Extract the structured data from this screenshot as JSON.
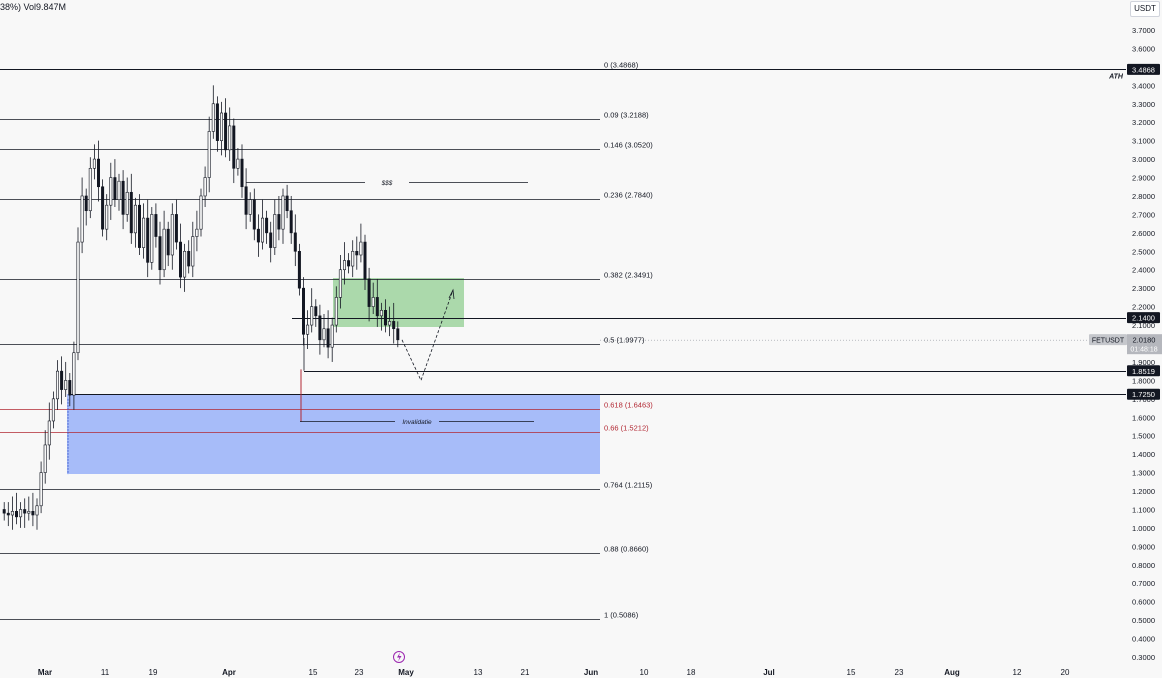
{
  "header": {
    "volume_text": "38%)  Vol9.847M",
    "currency": "USDT"
  },
  "price_axis": {
    "ticks": [
      "3.7000",
      "3.6000",
      "3.5000",
      "3.4000",
      "3.3000",
      "3.2000",
      "3.1000",
      "3.0000",
      "2.9000",
      "2.8000",
      "2.7000",
      "2.6000",
      "2.5000",
      "2.4000",
      "2.3000",
      "2.2000",
      "2.1000",
      "2.0000",
      "1.9000",
      "1.8000",
      "1.7000",
      "1.6000",
      "1.5000",
      "1.4000",
      "1.3000",
      "1.2000",
      "1.1000",
      "1.0000",
      "0.9000",
      "0.8000",
      "0.7000",
      "0.6000",
      "0.5000",
      "0.4000",
      "0.3000"
    ]
  },
  "time_axis": {
    "labels": [
      {
        "text": "Mar",
        "bold": true
      },
      {
        "text": "11",
        "bold": false
      },
      {
        "text": "19",
        "bold": false
      },
      {
        "text": "Apr",
        "bold": true
      },
      {
        "text": "15",
        "bold": false
      },
      {
        "text": "23",
        "bold": false
      },
      {
        "text": "May",
        "bold": true
      },
      {
        "text": "13",
        "bold": false
      },
      {
        "text": "21",
        "bold": false
      },
      {
        "text": "Jun",
        "bold": true
      },
      {
        "text": "10",
        "bold": false
      },
      {
        "text": "18",
        "bold": false
      },
      {
        "text": "Jul",
        "bold": true
      },
      {
        "text": "15",
        "bold": false
      },
      {
        "text": "23",
        "bold": false
      },
      {
        "text": "Aug",
        "bold": true
      },
      {
        "text": "12",
        "bold": false
      },
      {
        "text": "20",
        "bold": false
      }
    ]
  },
  "chart_data": {
    "type": "candlestick",
    "symbol": "FETUSDT",
    "current_price": "2.0180",
    "countdown": "01:48:18",
    "fib_levels": [
      {
        "label": "0 (3.4868)",
        "value": 3.4868,
        "color": "#131722"
      },
      {
        "label": "0.09 (3.2188)",
        "value": 3.2188,
        "color": "#131722"
      },
      {
        "label": "0.146 (3.0520)",
        "value": 3.052,
        "color": "#131722"
      },
      {
        "label": "0.236 (2.7840)",
        "value": 2.784,
        "color": "#131722"
      },
      {
        "label": "0.382 (2.3491)",
        "value": 2.3491,
        "color": "#131722"
      },
      {
        "label": "0.5 (1.9977)",
        "value": 1.9977,
        "color": "#131722"
      },
      {
        "label": "0.618 (1.6463)",
        "value": 1.6463,
        "color": "#b22833"
      },
      {
        "label": "0.66 (1.5212)",
        "value": 1.5212,
        "color": "#b22833"
      },
      {
        "label": "0.764 (1.2115)",
        "value": 1.2115,
        "color": "#131722"
      },
      {
        "label": "0.88 (0.8660)",
        "value": 0.866,
        "color": "#131722"
      },
      {
        "label": "1 (0.5086)",
        "value": 0.5086,
        "color": "#131722"
      }
    ],
    "horizontal_lines": [
      {
        "value": 3.4868,
        "label": "3.4868",
        "note": "ATH"
      },
      {
        "value": 2.14,
        "label": "2.1400"
      },
      {
        "value": 1.8519,
        "label": "1.8519"
      },
      {
        "value": 1.725,
        "label": "1.7250"
      }
    ],
    "annotations": [
      {
        "text": "$$$",
        "value": 2.875
      },
      {
        "text": "Invalidatie",
        "value": 1.582
      }
    ],
    "zones": [
      {
        "name": "green-zone",
        "top": 2.355,
        "bottom": 2.085,
        "start": "Apr 21",
        "end": "May 9",
        "color": "#9ed49e"
      },
      {
        "name": "blue-zone",
        "top": 1.725,
        "bottom": 1.292,
        "start": "Mar 5",
        "end": "Jun 1",
        "color": "#9fb6f8"
      }
    ],
    "projection": [
      {
        "date": "Apr 30",
        "price": 2.02
      },
      {
        "date": "May 3",
        "price": 1.8
      },
      {
        "date": "May 9",
        "price": 2.29
      }
    ]
  },
  "colors": {
    "candle": "#131722",
    "background": "#f8f8f8",
    "fib_red": "#b22833",
    "green_zone": "#9ed49e",
    "blue_zone": "#9fb6f8"
  }
}
